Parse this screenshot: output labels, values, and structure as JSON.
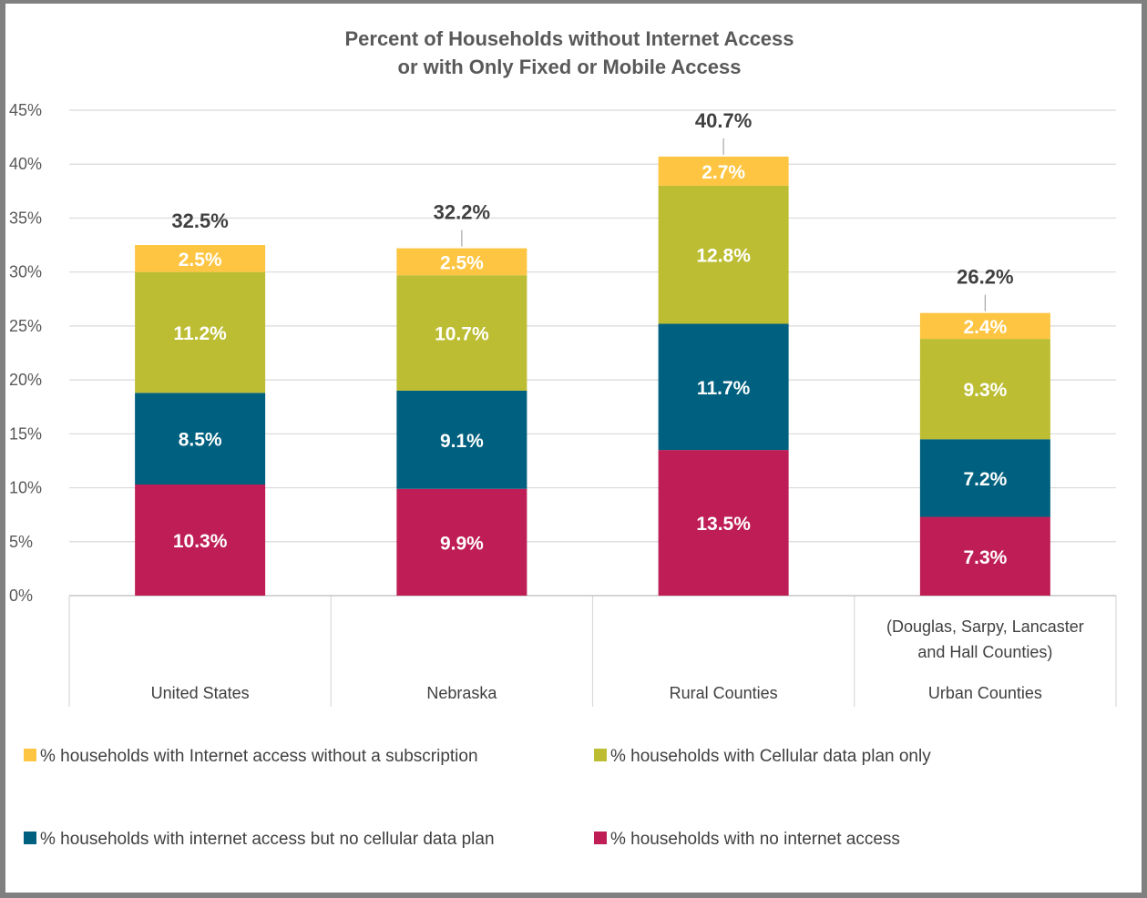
{
  "chart_data": {
    "type": "bar",
    "stacked": true,
    "title_lines": [
      "Percent of Households without Internet Access",
      "or with Only Fixed or Mobile Access"
    ],
    "categories": [
      "United States",
      "Nebraska",
      "Rural Counties",
      "Urban Counties"
    ],
    "category_sublabels": [
      "",
      "",
      "",
      "(Douglas, Sarpy, Lancaster|and Hall Counties)"
    ],
    "ylim": [
      0,
      45
    ],
    "yticks": [
      0,
      5,
      10,
      15,
      20,
      25,
      30,
      35,
      40,
      45
    ],
    "ytick_labels": [
      "0%",
      "5%",
      "10%",
      "15%",
      "20%",
      "25%",
      "30%",
      "35%",
      "40%",
      "45%"
    ],
    "series": [
      {
        "name": "% households with no internet access",
        "color": "#BE1E55",
        "values": [
          10.3,
          9.9,
          13.5,
          7.3
        ],
        "labels": [
          "10.3%",
          "9.9%",
          "13.5%",
          "7.3%"
        ]
      },
      {
        "name": "% households with internet access but no cellular data plan",
        "color": "#00607F",
        "values": [
          8.5,
          9.1,
          11.7,
          7.2
        ],
        "labels": [
          "8.5%",
          "9.1%",
          "11.7%",
          "7.2%"
        ]
      },
      {
        "name": "% households with Cellular data plan only",
        "color": "#BCBD32",
        "values": [
          11.2,
          10.7,
          12.8,
          9.3
        ],
        "labels": [
          "11.2%",
          "10.7%",
          "12.8%",
          "9.3%"
        ]
      },
      {
        "name": "% households with Internet access without a subscription",
        "color": "#FDC541",
        "values": [
          2.5,
          2.5,
          2.7,
          2.4
        ],
        "labels": [
          "2.5%",
          "2.5%",
          "2.7%",
          "2.4%"
        ]
      }
    ],
    "totals": [
      32.5,
      32.2,
      40.7,
      26.2
    ],
    "total_labels": [
      "32.5%",
      "32.2%",
      "40.7%",
      "26.2%"
    ],
    "legend_position": "bottom",
    "legend_order": [
      3,
      2,
      1,
      0
    ],
    "grid": true
  }
}
